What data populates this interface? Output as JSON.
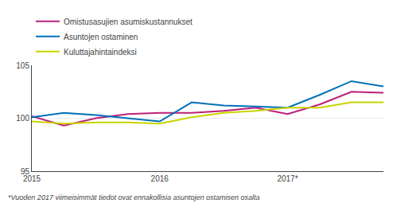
{
  "chart_data": {
    "type": "line",
    "categories": [
      "2015",
      null,
      null,
      null,
      "2016",
      null,
      null,
      null,
      "2017*",
      null,
      null,
      null
    ],
    "series": [
      {
        "name": "Omistusasujien asumiskustannukset",
        "color": "#be1e78",
        "values": [
          100.2,
          99.3,
          100.0,
          100.4,
          100.5,
          100.5,
          100.7,
          101.0,
          100.4,
          101.3,
          102.5,
          102.4
        ]
      },
      {
        "name": "Asuntojen ostaminen",
        "color": "#0070b8",
        "values": [
          100.1,
          100.5,
          100.3,
          100.0,
          99.7,
          101.5,
          101.2,
          101.1,
          101.0,
          102.2,
          103.5,
          103.0
        ]
      },
      {
        "name": "Kuluttajahintaindeksi",
        "color": "#c8d400",
        "values": [
          99.7,
          99.5,
          99.6,
          99.6,
          99.5,
          100.1,
          100.5,
          100.7,
          101.0,
          101.0,
          101.5,
          101.5
        ]
      }
    ],
    "ylim": [
      95,
      105
    ],
    "yticks": [
      95,
      100,
      105
    ],
    "grid": true,
    "legend": "top left",
    "annotations": [
      "*Vuoden 2017 viimeisimmät tiedot ovat ennakollisia asuntojen ostamisen osalta"
    ]
  }
}
